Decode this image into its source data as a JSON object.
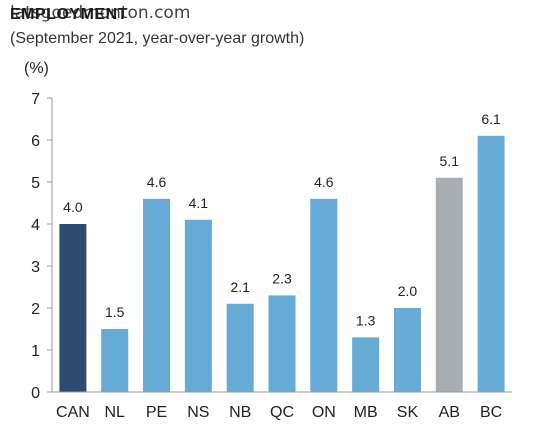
{
  "header": {
    "title": "EMPLOYMENT",
    "watermark": "latsgoedmonton.com",
    "subtitle": "(September 2021, year-over-year growth)",
    "unit": "(%)"
  },
  "colors": {
    "canada": "#2e4a6e",
    "province": "#66aad6",
    "alberta": "#a8adb2",
    "axis": "#999999"
  },
  "chart_data": {
    "type": "bar",
    "categories": [
      "CAN",
      "NL",
      "PE",
      "NS",
      "NB",
      "QC",
      "ON",
      "MB",
      "SK",
      "AB",
      "BC"
    ],
    "values": [
      4.0,
      1.5,
      4.6,
      4.1,
      2.1,
      2.3,
      4.6,
      1.3,
      2.0,
      5.1,
      6.1
    ],
    "labels": [
      "4.0",
      "1.5",
      "4.6",
      "4.1",
      "2.1",
      "2.3",
      "4.6",
      "1.3",
      "2.0",
      "5.1",
      "6.1"
    ],
    "bar_colors": [
      "canada",
      "province",
      "province",
      "province",
      "province",
      "province",
      "province",
      "province",
      "province",
      "alberta",
      "province"
    ],
    "ylim": [
      0,
      7
    ],
    "yticks": [
      "0",
      "1",
      "2",
      "3",
      "4",
      "5",
      "6",
      "7"
    ],
    "grid": false
  }
}
